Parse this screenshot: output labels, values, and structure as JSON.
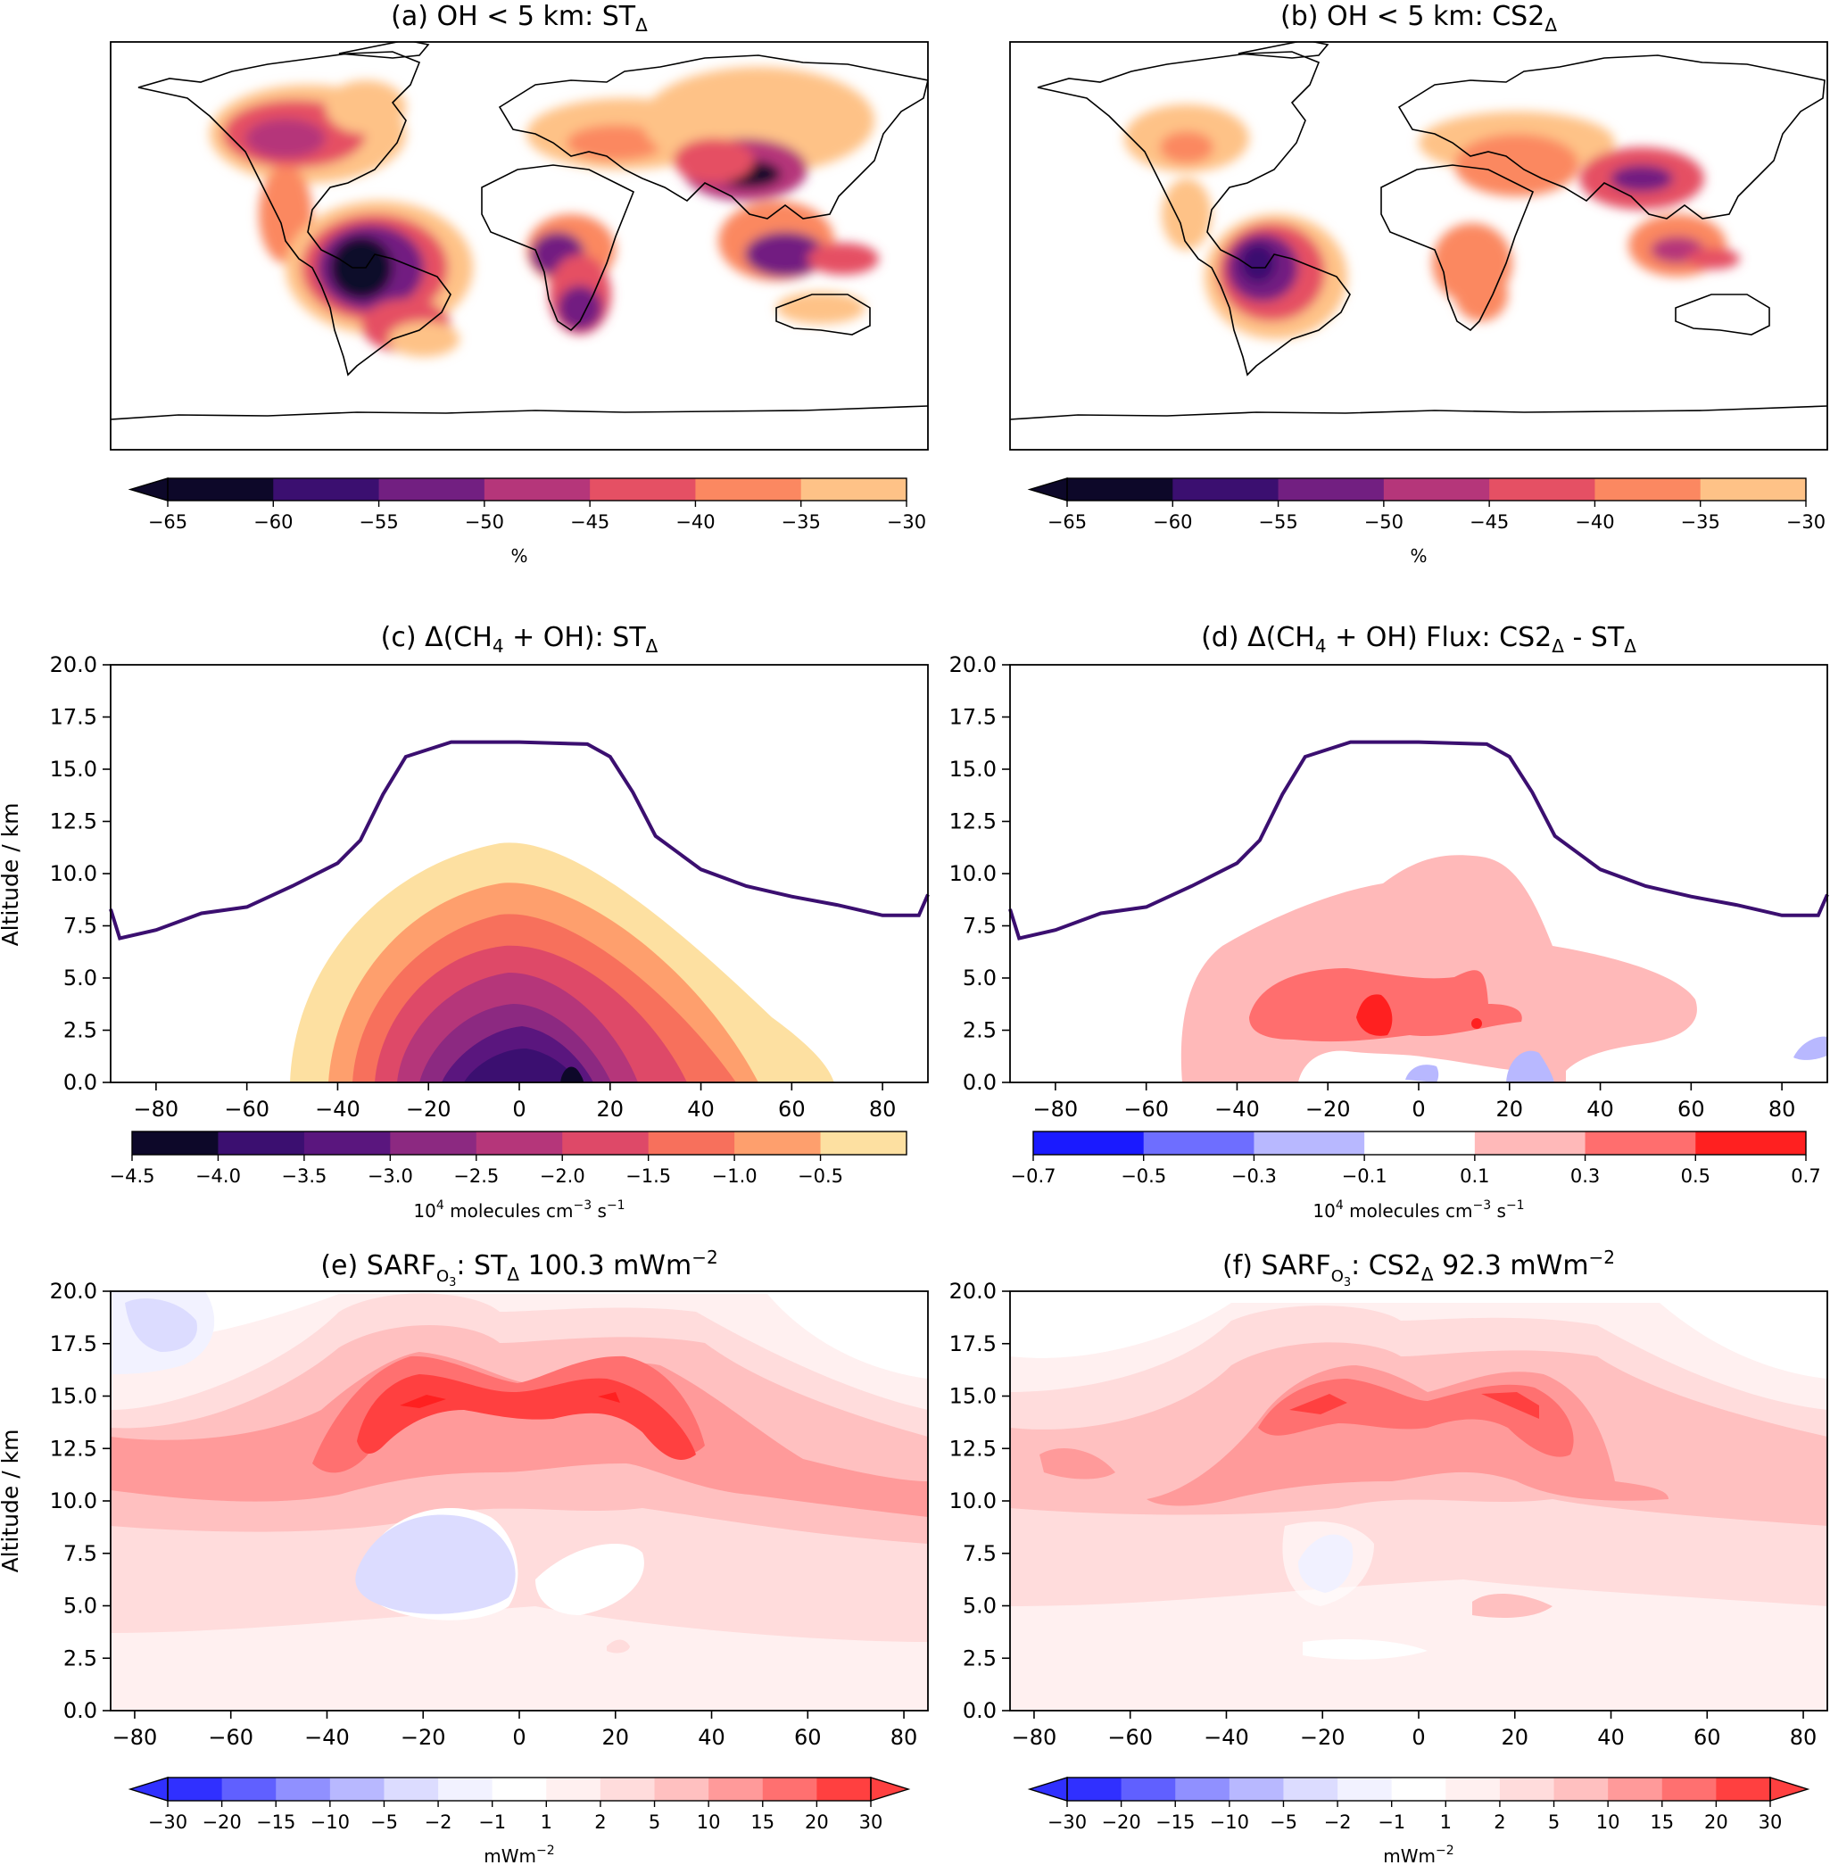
{
  "chart_data": [
    {
      "id": "a",
      "type": "heatmap",
      "title": "(a) OH < 5 km: ST",
      "title_sub": "Δ",
      "title_tail": "",
      "colorbar": {
        "ticks": [
          "−65",
          "−60",
          "−55",
          "−50",
          "−45",
          "−40",
          "−35",
          "−30"
        ],
        "colors": [
          "#0d0829",
          "#3b0f70",
          "#721f81",
          "#b5367a",
          "#e55064",
          "#fb8861",
          "#fec287"
        ],
        "label": "%",
        "extend": "min"
      }
    },
    {
      "id": "b",
      "type": "heatmap",
      "title": "(b) OH < 5 km: CS2",
      "title_sub": "Δ",
      "title_tail": "",
      "colorbar": {
        "ticks": [
          "−65",
          "−60",
          "−55",
          "−50",
          "−45",
          "−40",
          "−35",
          "−30"
        ],
        "colors": [
          "#0d0829",
          "#3b0f70",
          "#721f81",
          "#b5367a",
          "#e55064",
          "#fb8861",
          "#fec287"
        ],
        "label": "%",
        "extend": "min"
      }
    },
    {
      "id": "c",
      "type": "heatmap",
      "title": "(c) Δ(CH",
      "title_rest": " + OH): ST",
      "title_sub": "Δ",
      "xlim": [
        -90,
        90
      ],
      "ylim": [
        0,
        20
      ],
      "xticks": [
        "−80",
        "−60",
        "−40",
        "−20",
        "0",
        "20",
        "40",
        "60",
        "80"
      ],
      "yticks": [
        "0.0",
        "2.5",
        "5.0",
        "7.5",
        "10.0",
        "12.5",
        "15.0",
        "17.5",
        "20.0"
      ],
      "ylabel": "Altitude / km",
      "tropopause_km": [
        [
          -90,
          8.3
        ],
        [
          -88,
          6.9
        ],
        [
          -80,
          7.3
        ],
        [
          -70,
          8.1
        ],
        [
          -60,
          8.4
        ],
        [
          -50,
          9.4
        ],
        [
          -40,
          10.5
        ],
        [
          -35,
          11.6
        ],
        [
          -30,
          13.8
        ],
        [
          -25,
          15.6
        ],
        [
          -15,
          16.3
        ],
        [
          0,
          16.3
        ],
        [
          15,
          16.2
        ],
        [
          20,
          15.6
        ],
        [
          25,
          13.9
        ],
        [
          30,
          11.8
        ],
        [
          40,
          10.2
        ],
        [
          50,
          9.4
        ],
        [
          60,
          8.9
        ],
        [
          70,
          8.5
        ],
        [
          80,
          8.0
        ],
        [
          88,
          8.0
        ],
        [
          90,
          9.0
        ]
      ],
      "contour_levels": [
        -4.5,
        -4.0,
        -3.5,
        -3.0,
        -2.5,
        -2.0,
        -1.5,
        -1.0,
        -0.5
      ],
      "colorbar": {
        "ticks": [
          "−4.5",
          "−4.0",
          "−3.5",
          "−3.0",
          "−2.5",
          "−2.0",
          "−1.5",
          "−1.0",
          "−0.5"
        ],
        "colors": [
          "#0d0829",
          "#3b0f70",
          "#5a167e",
          "#8c2981",
          "#b5367a",
          "#de4968",
          "#f7705c",
          "#fe9f6d",
          "#fde0a1"
        ],
        "label": "10",
        "label_sup": "4",
        "label_rest": " molecules cm",
        "label_sup2": "−3",
        "label_rest2": " s",
        "label_sup3": "−1"
      }
    },
    {
      "id": "d",
      "type": "heatmap",
      "title": "(d) Δ(CH",
      "title_rest": " + OH) Flux: CS2",
      "title_sub": "Δ",
      "title_rest2": " - ST",
      "xlim": [
        -90,
        90
      ],
      "ylim": [
        0,
        20
      ],
      "xticks": [
        "−80",
        "−60",
        "−40",
        "−20",
        "0",
        "20",
        "40",
        "60",
        "80"
      ],
      "contour_levels": [
        -0.7,
        -0.5,
        -0.3,
        -0.1,
        0.1,
        0.3,
        0.5,
        0.7
      ],
      "colorbar": {
        "ticks": [
          "−0.7",
          "−0.5",
          "−0.3",
          "−0.1",
          "0.1",
          "0.3",
          "0.5",
          "0.7"
        ],
        "colors": [
          "#1a1aff",
          "#6e6eff",
          "#b8b8ff",
          "#ffffff",
          "#ffb9b9",
          "#ff6e6e",
          "#ff2020"
        ],
        "label": "10",
        "label_sup": "4",
        "label_rest": " molecules cm",
        "label_sup2": "−3",
        "label_rest2": " s",
        "label_sup3": "−1"
      }
    },
    {
      "id": "e",
      "type": "heatmap",
      "title": "(e) SARF",
      "title_o": "O",
      "title_o3": "3",
      "title_rest": ": ST",
      "title_sub": "Δ",
      "title_value": " 100.3 mWm",
      "title_sup": "−2",
      "xlim": [
        -85,
        85
      ],
      "ylim": [
        0,
        20
      ],
      "xticks": [
        "−80",
        "−60",
        "−40",
        "−20",
        "0",
        "20",
        "40",
        "60",
        "80"
      ],
      "yticks": [
        "0.0",
        "2.5",
        "5.0",
        "7.5",
        "10.0",
        "12.5",
        "15.0",
        "17.5",
        "20.0"
      ],
      "ylabel": "Altitude / km",
      "contour_levels": [
        -30,
        -20,
        -15,
        -10,
        -5,
        -2,
        -1,
        1,
        2,
        5,
        10,
        15,
        20,
        30
      ],
      "colorbar": {
        "ticks": [
          "−30",
          "−20",
          "−15",
          "−10",
          "−5",
          "−2",
          "−1",
          "1",
          "2",
          "5",
          "10",
          "15",
          "20",
          "30"
        ],
        "colors": [
          "#3030ff",
          "#6060ff",
          "#9090ff",
          "#b8b8ff",
          "#dcdcff",
          "#f2f2ff",
          "#ffffff",
          "#fff0f0",
          "#ffdcdc",
          "#ffc0c0",
          "#ff9a9a",
          "#ff7070",
          "#ff4040"
        ],
        "label": "mWm",
        "label_sup": "−2",
        "extend": "both"
      }
    },
    {
      "id": "f",
      "type": "heatmap",
      "title": "(f) SARF",
      "title_o": "O",
      "title_o3": "3",
      "title_rest": ": CS2",
      "title_sub": "Δ",
      "title_value": " 92.3 mWm",
      "title_sup": "−2",
      "xlim": [
        -85,
        85
      ],
      "ylim": [
        0,
        20
      ],
      "xticks": [
        "−80",
        "−60",
        "−40",
        "−20",
        "0",
        "20",
        "40",
        "60",
        "80"
      ],
      "contour_levels": [
        -30,
        -20,
        -15,
        -10,
        -5,
        -2,
        -1,
        1,
        2,
        5,
        10,
        15,
        20,
        30
      ],
      "colorbar": {
        "ticks": [
          "−30",
          "−20",
          "−15",
          "−10",
          "−5",
          "−2",
          "−1",
          "1",
          "2",
          "5",
          "10",
          "15",
          "20",
          "30"
        ],
        "colors": [
          "#3030ff",
          "#6060ff",
          "#9090ff",
          "#b8b8ff",
          "#dcdcff",
          "#f2f2ff",
          "#ffffff",
          "#fff0f0",
          "#ffdcdc",
          "#ffc0c0",
          "#ff9a9a",
          "#ff7070",
          "#ff4040"
        ],
        "label": "mWm",
        "label_sup": "−2",
        "extend": "both"
      }
    }
  ]
}
